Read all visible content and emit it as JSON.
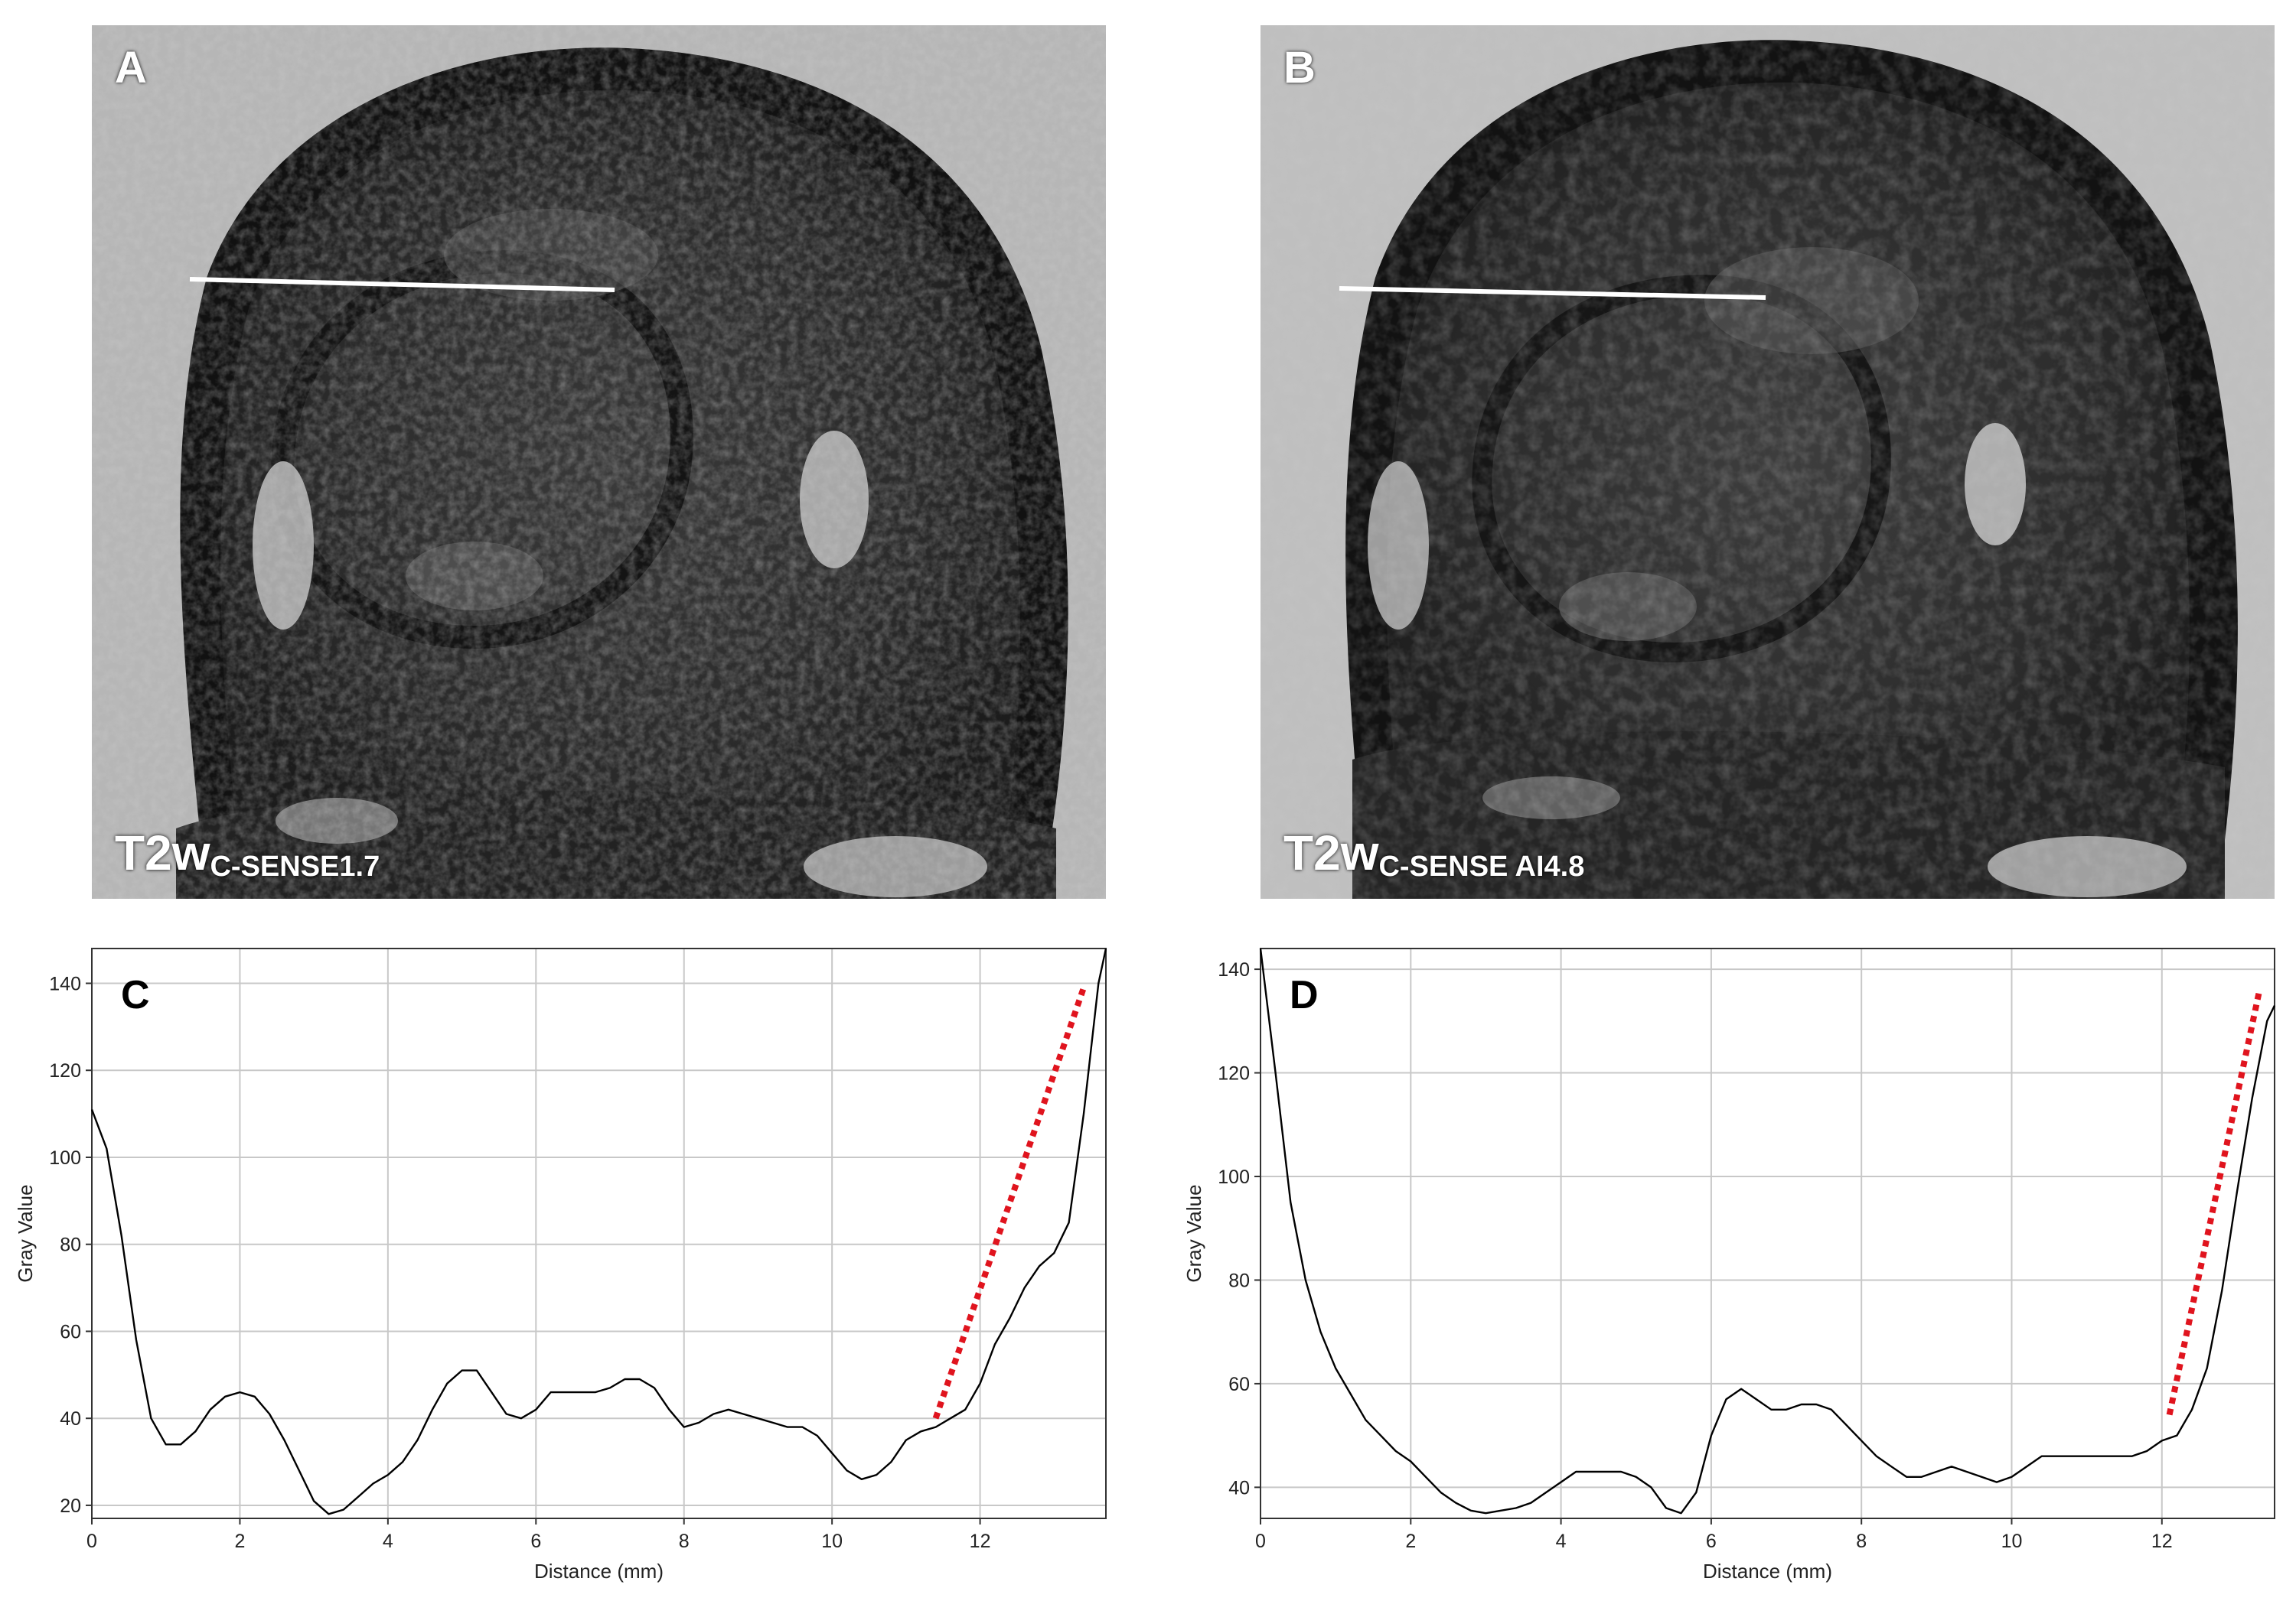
{
  "panels": {
    "A": {
      "letter": "A",
      "label_main": "T2w",
      "label_sub": "C-SENSE1.7"
    },
    "B": {
      "letter": "B",
      "label_main": "T2w",
      "label_sub": "C-SENSE AI4.8"
    }
  },
  "colors": {
    "profile_line": "#000000",
    "slope_line": "#e0141e",
    "grid": "#c8c8c8",
    "roi_line": "#ffffff"
  },
  "chart_data": [
    {
      "type": "line",
      "panel_letter": "C",
      "xlabel": "Distance (mm)",
      "ylabel": "Gray Value",
      "xlim": [
        0,
        13.7
      ],
      "ylim": [
        17,
        148
      ],
      "xticks": [
        0,
        2,
        4,
        6,
        8,
        10,
        12
      ],
      "yticks": [
        20,
        40,
        60,
        80,
        100,
        120,
        140
      ],
      "grid": true,
      "series": [
        {
          "x": [
            0,
            0.2,
            0.4,
            0.6,
            0.8,
            1.0,
            1.2,
            1.4,
            1.6,
            1.8,
            2.0,
            2.2,
            2.4,
            2.6,
            2.8,
            3.0,
            3.2,
            3.4,
            3.6,
            3.8,
            4.0,
            4.2,
            4.4,
            4.6,
            4.8,
            5.0,
            5.2,
            5.4,
            5.6,
            5.8,
            6.0,
            6.2,
            6.4,
            6.6,
            6.8,
            7.0,
            7.2,
            7.4,
            7.6,
            7.8,
            8.0,
            8.2,
            8.4,
            8.6,
            8.8,
            9.0,
            9.2,
            9.4,
            9.6,
            9.8,
            10.0,
            10.2,
            10.4,
            10.6,
            10.8,
            11.0,
            11.2,
            11.4,
            11.6,
            11.8,
            12.0,
            12.2,
            12.4,
            12.6,
            12.8,
            13.0,
            13.2,
            13.4,
            13.6,
            13.7
          ],
          "values": [
            111,
            102,
            82,
            58,
            40,
            34,
            34,
            37,
            42,
            45,
            46,
            45,
            41,
            35,
            28,
            21,
            18,
            19,
            22,
            25,
            27,
            30,
            35,
            42,
            48,
            51,
            51,
            46,
            41,
            40,
            42,
            46,
            46,
            46,
            46,
            47,
            49,
            49,
            47,
            42,
            38,
            39,
            41,
            42,
            41,
            40,
            39,
            38,
            38,
            36,
            32,
            28,
            26,
            27,
            30,
            35,
            37,
            38,
            40,
            42,
            48,
            57,
            63,
            70,
            75,
            78,
            85,
            110,
            140,
            148
          ]
        }
      ],
      "slope_segment": {
        "x": [
          11.4,
          13.4
        ],
        "values": [
          40,
          139
        ]
      }
    },
    {
      "type": "line",
      "panel_letter": "D",
      "xlabel": "Distance (mm)",
      "ylabel": "Gray Value",
      "xlim": [
        0,
        13.5
      ],
      "ylim": [
        34,
        144
      ],
      "xticks": [
        0,
        2,
        4,
        6,
        8,
        10,
        12
      ],
      "yticks": [
        40,
        60,
        80,
        100,
        120,
        140
      ],
      "grid": true,
      "series": [
        {
          "x": [
            0,
            0.2,
            0.4,
            0.6,
            0.8,
            1.0,
            1.2,
            1.4,
            1.6,
            1.8,
            2.0,
            2.2,
            2.4,
            2.6,
            2.8,
            3.0,
            3.2,
            3.4,
            3.6,
            3.8,
            4.0,
            4.2,
            4.4,
            4.6,
            4.8,
            5.0,
            5.2,
            5.4,
            5.6,
            5.8,
            6.0,
            6.2,
            6.4,
            6.6,
            6.8,
            7.0,
            7.2,
            7.4,
            7.6,
            7.8,
            8.0,
            8.2,
            8.4,
            8.6,
            8.8,
            9.0,
            9.2,
            9.4,
            9.6,
            9.8,
            10.0,
            10.2,
            10.4,
            10.6,
            10.8,
            11.0,
            11.2,
            11.4,
            11.6,
            11.8,
            12.0,
            12.2,
            12.4,
            12.6,
            12.8,
            13.0,
            13.2,
            13.4,
            13.5
          ],
          "values": [
            144,
            120,
            95,
            80,
            70,
            63,
            58,
            53,
            50,
            47,
            45,
            42,
            39,
            37,
            35.5,
            35,
            35.5,
            36,
            37,
            39,
            41,
            43,
            43,
            43,
            43,
            42,
            40,
            36,
            35,
            39,
            50,
            57,
            59,
            57,
            55,
            55,
            56,
            56,
            55,
            52,
            49,
            46,
            44,
            42,
            42,
            43,
            44,
            43,
            42,
            41,
            42,
            44,
            46,
            46,
            46,
            46,
            46,
            46,
            46,
            47,
            49,
            50,
            55,
            63,
            78,
            97,
            115,
            130,
            133
          ]
        }
      ],
      "slope_segment": {
        "x": [
          12.1,
          13.3
        ],
        "values": [
          54,
          136
        ]
      }
    }
  ]
}
